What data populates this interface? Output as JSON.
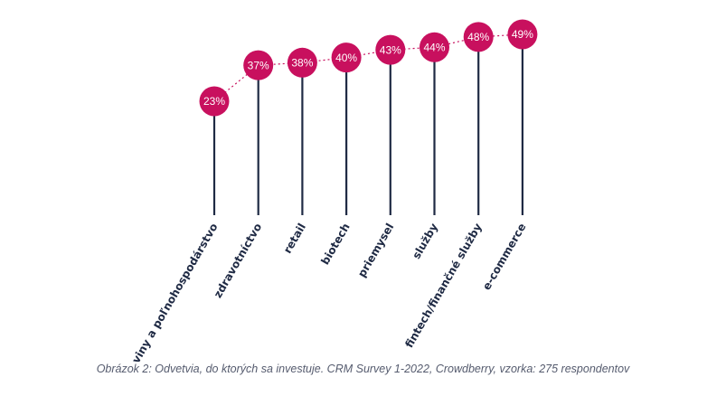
{
  "chart_data": {
    "type": "lollipop",
    "categories": [
      "potraviny a poľnohospodárstvo",
      "zdravotníctvo",
      "retail",
      "biotech",
      "priemysel",
      "služby",
      "fintech/finančné služby",
      "e-commerce"
    ],
    "values": [
      23,
      37,
      38,
      40,
      43,
      44,
      48,
      49
    ],
    "value_suffix": "%",
    "dot_color": "#c8105e",
    "stem_color": "#1f2a44"
  },
  "caption": "Obrázok 2: Odvetvia, do ktorých sa investuje. CRM Survey 1-2022, Crowdberry, vzorka: 275 respondentov"
}
